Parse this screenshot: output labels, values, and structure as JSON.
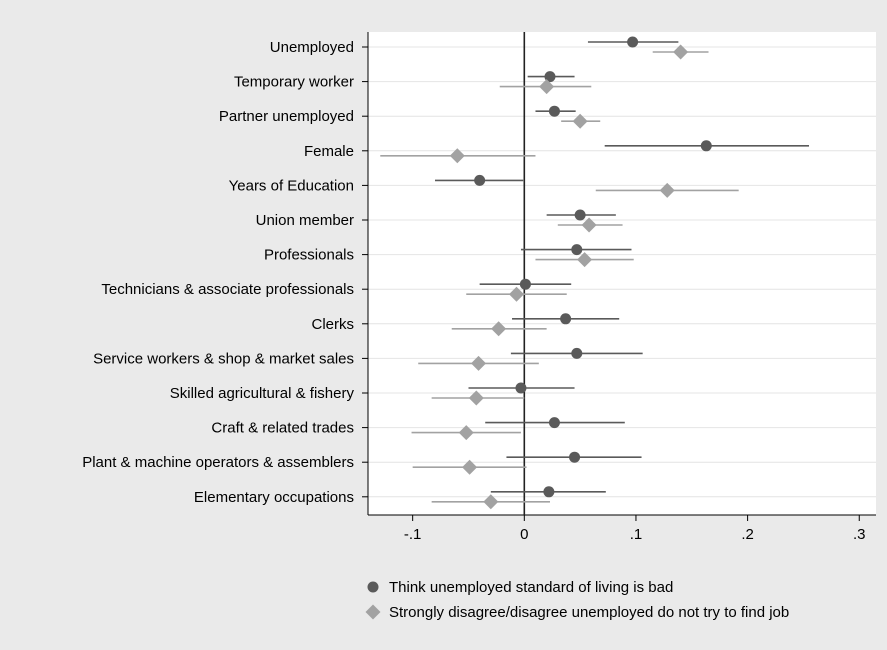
{
  "chart_data": {
    "type": "scatter",
    "subtype": "coefficient-plot",
    "title": "",
    "xlabel": "",
    "ylabel": "",
    "xlim": [
      -0.14,
      0.315
    ],
    "x_ticks": [
      {
        "value": -0.1,
        "label": "-.1"
      },
      {
        "value": 0,
        "label": "0"
      },
      {
        "value": 0.1,
        "label": ".1"
      },
      {
        "value": 0.2,
        "label": ".2"
      },
      {
        "value": 0.3,
        "label": ".3"
      }
    ],
    "reference_line": 0,
    "grid": true,
    "legend_position": "bottom",
    "categories": [
      "Unemployed",
      "Temporary worker",
      "Partner unemployed",
      "Female",
      "Years of Education",
      "Union member",
      "Professionals",
      "Technicians & associate professionals",
      "Clerks",
      "Service workers & shop & market sales",
      "Skilled agricultural & fishery",
      "Craft & related trades",
      "Plant & machine operators & assemblers",
      "Elementary occupations"
    ],
    "series": [
      {
        "name": "Think unemployed standard of living is bad",
        "marker": "circle",
        "color": "#5a5a5a",
        "values": [
          0.097,
          0.023,
          0.027,
          0.163,
          -0.04,
          0.05,
          0.047,
          0.001,
          0.037,
          0.047,
          -0.003,
          0.027,
          0.045,
          0.022
        ],
        "ci_low": [
          0.057,
          0.003,
          0.01,
          0.072,
          -0.08,
          0.02,
          -0.003,
          -0.04,
          -0.011,
          -0.012,
          -0.05,
          -0.035,
          -0.016,
          -0.03
        ],
        "ci_high": [
          0.138,
          0.045,
          0.046,
          0.255,
          -0.001,
          0.082,
          0.096,
          0.042,
          0.085,
          0.106,
          0.045,
          0.09,
          0.105,
          0.073
        ]
      },
      {
        "name": "Strongly disagree/disagree unemployed do not try to find job",
        "marker": "diamond",
        "color": "#a2a2a2",
        "values": [
          0.14,
          0.02,
          0.05,
          -0.06,
          0.128,
          0.058,
          0.054,
          -0.007,
          -0.023,
          -0.041,
          -0.043,
          -0.052,
          -0.049,
          -0.03
        ],
        "ci_low": [
          0.115,
          -0.022,
          0.033,
          -0.129,
          0.064,
          0.03,
          0.01,
          -0.052,
          -0.065,
          -0.095,
          -0.083,
          -0.101,
          -0.1,
          -0.083
        ],
        "ci_high": [
          0.165,
          0.06,
          0.068,
          0.01,
          0.192,
          0.088,
          0.098,
          0.038,
          0.02,
          0.013,
          0.0,
          -0.003,
          0.002,
          0.023
        ]
      }
    ]
  }
}
